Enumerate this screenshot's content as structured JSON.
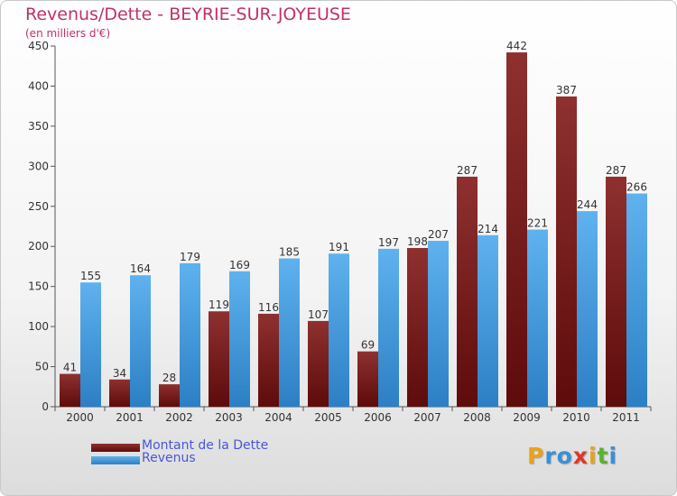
{
  "chart_data": {
    "type": "bar",
    "title": "Revenus/Dette - BEYRIE-SUR-JOYEUSE",
    "subtitle": "(en milliers d'€)",
    "categories": [
      "2000",
      "2001",
      "2002",
      "2003",
      "2004",
      "2005",
      "2006",
      "2007",
      "2008",
      "2009",
      "2010",
      "2011"
    ],
    "series": [
      {
        "name": "Montant de la Dette",
        "color": "#7a1a1a",
        "values": [
          41,
          34,
          28,
          119,
          116,
          107,
          69,
          198,
          287,
          442,
          387,
          287
        ]
      },
      {
        "name": "Revenus",
        "color": "#3d9be0",
        "values": [
          155,
          164,
          179,
          169,
          185,
          191,
          197,
          207,
          214,
          221,
          244,
          266
        ]
      }
    ],
    "ylim": [
      0,
      450
    ],
    "yticks": [
      0,
      50,
      100,
      150,
      200,
      250,
      300,
      350,
      400,
      450
    ],
    "grid": false,
    "legend_position": "bottom-left"
  },
  "logo": {
    "letters": [
      "P",
      "r",
      "o",
      "x",
      "i",
      "t",
      "i"
    ],
    "colors": [
      "#e8a21b",
      "#3a8fd6",
      "#3a8fd6",
      "#d83a2a",
      "#e8a21b",
      "#59b22d",
      "#3a8fd6"
    ]
  }
}
